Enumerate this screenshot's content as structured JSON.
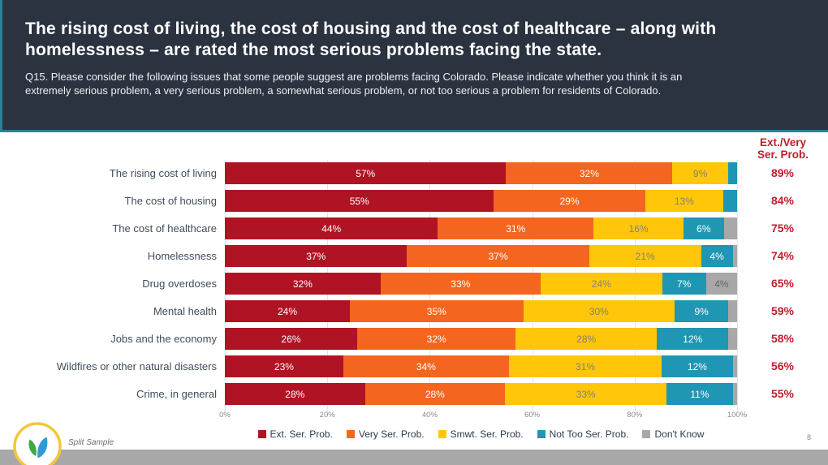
{
  "header": {
    "title": "The rising cost of living, the cost of housing and the cost of healthcare – along with homelessness – are rated the most serious problems facing the state.",
    "subtitle": "Q15. Please consider the following issues that some people suggest are problems facing Colorado. Please indicate whether you think it is an extremely serious problem, a very serious problem, a somewhat serious problem, or not too serious a problem for residents of Colorado."
  },
  "colors": {
    "header_bg": "#2b3240",
    "accent_teal": "#2c7f96",
    "summary_red": "#be1e2d",
    "footer_gray": "#a8a8a8"
  },
  "chart_data": {
    "type": "bar",
    "stacked": true,
    "orientation": "horizontal",
    "xlim": [
      0,
      100
    ],
    "grid": true,
    "label_min": 4,
    "categories": [
      "The rising cost of living",
      "The cost of housing",
      "The cost of healthcare",
      "Homelessness",
      "Drug overdoses",
      "Mental health",
      "Jobs and the economy",
      "Wildfires or other natural disasters",
      "Crime, in general"
    ],
    "series": [
      {
        "key": "ext",
        "name": "Ext. Ser. Prob.",
        "color": "#b01323",
        "label_color": "#ffffff",
        "values": [
          57,
          55,
          44,
          37,
          32,
          24,
          26,
          23,
          28
        ]
      },
      {
        "key": "very",
        "name": "Very Ser. Prob.",
        "color": "#f4661f",
        "label_color": "#ffffff",
        "values": [
          32,
          29,
          31,
          37,
          33,
          35,
          32,
          34,
          28
        ]
      },
      {
        "key": "smwt",
        "name": "Smwt. Ser. Prob.",
        "color": "#ffc60a",
        "label_color": "#83836f",
        "values": [
          9,
          13,
          16,
          21,
          24,
          30,
          28,
          31,
          33
        ]
      },
      {
        "key": "nottoo",
        "name": "Not Too Ser. Prob.",
        "color": "#1e96b4",
        "label_color": "#ffffff",
        "values": [
          2,
          3,
          6,
          4,
          7,
          9,
          12,
          12,
          11
        ]
      },
      {
        "key": "dk",
        "name": "Don't Know",
        "color": "#a8a8a8",
        "label_color": "#5a6470",
        "values": [
          0,
          0,
          3,
          1,
          4,
          2,
          2,
          1,
          1
        ]
      }
    ],
    "x_ticks": [
      "0%",
      "20%",
      "40%",
      "60%",
      "80%",
      "100%"
    ],
    "summary_column": {
      "label": "Ext./Very\nSer. Prob.",
      "values": [
        "89%",
        "84%",
        "75%",
        "74%",
        "65%",
        "59%",
        "58%",
        "56%",
        "55%"
      ]
    },
    "legend_position": "bottom"
  },
  "footer": {
    "note": "Split Sample",
    "page": "8",
    "logo": "sprout-leaves-logo"
  }
}
